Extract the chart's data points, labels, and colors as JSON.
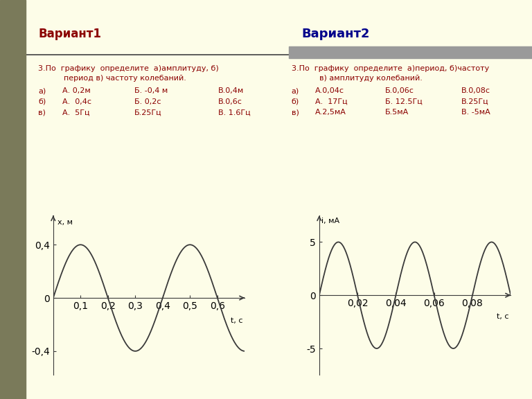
{
  "bg_color": "#FDFDE8",
  "left_panel_color": "#7A7A5A",
  "header_bar_color": "#9A9A9A",
  "variant1_title": "Вариант1",
  "variant2_title": "Вариант2",
  "variant1_title_color": "#8B0000",
  "variant2_title_color": "#00008B",
  "question_color": "#8B0000",
  "question_text_v1_line1": "3.По  графику  определите  а)амплитуду, б)",
  "question_text_v1_line2": "период в) частоту колебаний.",
  "question_text_v2_line1": "3.По  графику  определите  а)период, б)частоту",
  "question_text_v2_line2": "в) амплитуду колебаний.",
  "answers_v1": [
    {
      "label": "а)",
      "A": "А. 0,2м",
      "B": "Б. -0,4 м",
      "C": "В.0,4м"
    },
    {
      "label": "б)",
      "A": "А.  0,4с",
      "B": "Б. 0,2с",
      "C": "В.0,6с"
    },
    {
      "label": "в)",
      "A": "А.  5Гц",
      "B": "Б.25Гц",
      "C": "В. 1.6Гц"
    }
  ],
  "answers_v2": [
    {
      "label": "а)",
      "A": "А.0,04с",
      "B": "Б.0,06с",
      "C": "В.0,08с"
    },
    {
      "label": "б)",
      "A": "А.  17Гц",
      "B": "Б. 12.5Гц",
      "C": "В.25Гц"
    },
    {
      "label": "в)",
      "A": "А.2,5мА",
      "B": "Б.5мА",
      "C": "В. -5мА"
    }
  ],
  "plot1_ylabel": "x, м",
  "plot1_xlabel": "t, с",
  "plot1_amplitude": 0.4,
  "plot1_period": 0.4,
  "plot1_xtick_vals": [
    0.1,
    0.2,
    0.3,
    0.4,
    0.5,
    0.6
  ],
  "plot1_xtick_labels": [
    "0,1",
    "0,2",
    "0,3",
    "0,4",
    "0,5",
    "0,6"
  ],
  "plot1_ytick_vals": [
    -0.4,
    0,
    0.4
  ],
  "plot1_ytick_labels": [
    "-0,4",
    "0",
    "0,4"
  ],
  "plot1_xlim": [
    0,
    0.7
  ],
  "plot1_ylim": [
    -0.58,
    0.62
  ],
  "plot2_ylabel": "i, мА",
  "plot2_xlabel": "t, с",
  "plot2_amplitude": 5,
  "plot2_period": 0.04,
  "plot2_xtick_vals": [
    0.02,
    0.04,
    0.06,
    0.08
  ],
  "plot2_xtick_labels": [
    "0,02",
    "0,04",
    "0,06",
    "0,08"
  ],
  "plot2_ytick_vals": [
    -5,
    0,
    5
  ],
  "plot2_ytick_labels": [
    "-5",
    "0",
    "5"
  ],
  "plot2_xlim": [
    0,
    0.1
  ],
  "plot2_ylim": [
    -7.5,
    7.5
  ],
  "line_color": "#3A3A3A"
}
